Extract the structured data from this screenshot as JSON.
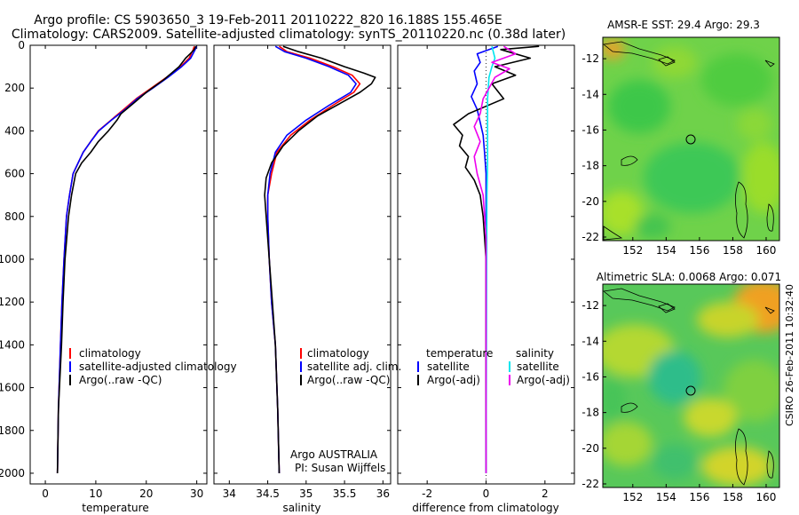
{
  "header": {
    "title_line1": "Argo profile: CS 5903650_3 19-Feb-2011 20110222_820 16.188S 155.465E",
    "title_line2": "Climatology: CARS2009. Satellite-adjusted climatology: synTS_20110220.nc (0.38d later)"
  },
  "side_label": "CSIRO 26-Feb-2011 10:32:40",
  "colors": {
    "clim": "#ff0000",
    "sat": "#0000ff",
    "argo": "#000000",
    "sat_diff": "#00e5ee",
    "argo_adj": "#ee00ee"
  },
  "chart_data": [
    {
      "id": "temperature",
      "type": "line",
      "xlabel": "temperature",
      "xlim": [
        -3,
        32
      ],
      "ylim": [
        2050,
        0
      ],
      "xticks": [
        0,
        10,
        20,
        30
      ],
      "yticks": [
        0,
        200,
        400,
        600,
        800,
        1000,
        1200,
        1400,
        1600,
        1800,
        2000
      ],
      "legend": {
        "placement": "lower-left",
        "items": [
          {
            "label": "climatology",
            "color": "#ff0000"
          },
          {
            "label": "satellite-adjusted climatology",
            "color": "#0000ff"
          },
          {
            "label": "Argo(..raw -QC)",
            "color": "#000000"
          }
        ]
      },
      "series": [
        {
          "name": "climatology",
          "color": "#ff0000",
          "x": [
            29.5,
            29.3,
            28.5,
            26.8,
            24,
            21,
            18,
            15.5,
            13,
            10.5,
            9,
            7.5,
            6.5,
            5.5,
            4.8,
            4.2,
            3.7,
            3.3,
            3.0,
            2.6,
            2.4
          ],
          "y": [
            5,
            20,
            60,
            100,
            150,
            200,
            250,
            300,
            350,
            400,
            450,
            500,
            550,
            600,
            700,
            800,
            1000,
            1200,
            1400,
            1700,
            2000
          ]
        },
        {
          "name": "satellite-adjusted climatology",
          "color": "#0000ff",
          "x": [
            29.9,
            29.7,
            28.8,
            27,
            24.3,
            21.3,
            18.2,
            15.8,
            13.1,
            10.6,
            9,
            7.5,
            6.5,
            5.5,
            4.8,
            4.2,
            3.7,
            3.3,
            3.0,
            2.6,
            2.4
          ],
          "y": [
            5,
            20,
            60,
            100,
            150,
            200,
            250,
            300,
            350,
            400,
            450,
            500,
            550,
            600,
            700,
            800,
            1000,
            1200,
            1400,
            1700,
            2000
          ]
        },
        {
          "name": "Argo(..raw -QC)",
          "color": "#000000",
          "x": [
            29.8,
            29.5,
            28.7,
            27.8,
            26.5,
            23.5,
            20,
            17.5,
            15,
            14.2,
            12.5,
            10.5,
            9,
            7.2,
            6,
            5.2,
            4.6,
            3.9,
            3.5,
            3.2,
            2.6,
            2.4
          ],
          "y": [
            5,
            20,
            40,
            60,
            100,
            160,
            220,
            270,
            320,
            350,
            400,
            450,
            500,
            550,
            600,
            700,
            800,
            1000,
            1200,
            1400,
            1700,
            2000
          ]
        }
      ]
    },
    {
      "id": "salinity",
      "type": "line",
      "xlabel": "salinity",
      "xlim": [
        33.8,
        36.1
      ],
      "ylim": [
        2050,
        0
      ],
      "xticks": [
        34,
        34.5,
        35,
        35.5,
        36
      ],
      "legend": {
        "placement": "lower-right",
        "items": [
          {
            "label": "climatology",
            "color": "#ff0000"
          },
          {
            "label": "satellite adj. clim.",
            "color": "#0000ff"
          },
          {
            "label": "Argo(..raw -QC)",
            "color": "#000000"
          }
        ]
      },
      "annotation": [
        "Argo AUSTRALIA",
        "PI: Susan Wijffels"
      ],
      "series": [
        {
          "name": "climatology",
          "color": "#ff0000",
          "x": [
            34.65,
            34.75,
            35.05,
            35.35,
            35.6,
            35.7,
            35.62,
            35.35,
            35.05,
            34.8,
            34.62,
            34.55,
            34.5,
            34.5,
            34.52,
            34.55,
            34.6,
            34.63,
            34.65
          ],
          "y": [
            5,
            30,
            60,
            100,
            140,
            180,
            220,
            280,
            350,
            420,
            500,
            600,
            700,
            800,
            1000,
            1200,
            1400,
            1700,
            2000
          ]
        },
        {
          "name": "satellite adj. clim.",
          "color": "#0000ff",
          "x": [
            34.6,
            34.72,
            35.0,
            35.3,
            35.55,
            35.65,
            35.58,
            35.3,
            35.0,
            34.75,
            34.6,
            34.53,
            34.5,
            34.5,
            34.52,
            34.55,
            34.6,
            34.63,
            34.65
          ],
          "y": [
            5,
            30,
            60,
            100,
            140,
            180,
            220,
            280,
            350,
            420,
            500,
            600,
            700,
            800,
            1000,
            1200,
            1400,
            1700,
            2000
          ]
        },
        {
          "name": "Argo(..raw -QC)",
          "color": "#000000",
          "x": [
            34.7,
            34.9,
            35.2,
            35.5,
            35.75,
            35.9,
            35.85,
            35.7,
            35.45,
            35.15,
            34.9,
            34.7,
            34.55,
            34.48,
            34.46,
            34.48,
            34.52,
            34.56,
            34.6,
            34.63,
            34.65
          ],
          "y": [
            5,
            30,
            60,
            100,
            130,
            150,
            180,
            220,
            270,
            330,
            400,
            470,
            550,
            620,
            700,
            800,
            1000,
            1200,
            1400,
            1700,
            2000
          ]
        }
      ]
    },
    {
      "id": "difference",
      "type": "line",
      "xlabel": "difference from climatology",
      "xlim": [
        -3,
        3
      ],
      "ylim": [
        2050,
        0
      ],
      "xticks": [
        -2,
        0,
        2
      ],
      "legend": {
        "placement": "lower-center",
        "items": [
          {
            "label": "temperature",
            "color": null
          },
          {
            "label": "satellite",
            "color": "#0000ff"
          },
          {
            "label": "Argo(-adj)",
            "color": "#000000"
          },
          {
            "label": "salinity",
            "color": null
          },
          {
            "label": "satellite",
            "color": "#00e5ee"
          },
          {
            "label": "Argo(-adj)",
            "color": "#ee00ee"
          }
        ]
      },
      "series": [
        {
          "name": "temperature satellite",
          "color": "#0000ff",
          "x": [
            0.4,
            -0.3,
            -0.2,
            -0.4,
            -0.3,
            -0.5,
            -0.3,
            -0.2,
            -0.1,
            -0.05,
            0,
            0,
            0,
            0
          ],
          "y": [
            5,
            40,
            80,
            120,
            180,
            240,
            300,
            360,
            420,
            500,
            600,
            800,
            1200,
            2000
          ]
        },
        {
          "name": "temperature Argo(-adj)",
          "color": "#000000",
          "x": [
            1.8,
            0.5,
            1.5,
            0.3,
            1.0,
            0.2,
            0.6,
            -0.6,
            -1.1,
            -0.8,
            -0.9,
            -0.6,
            -0.7,
            -0.4,
            -0.2,
            -0.1,
            0,
            0
          ],
          "y": [
            5,
            20,
            60,
            100,
            140,
            180,
            250,
            320,
            370,
            420,
            470,
            520,
            570,
            630,
            700,
            800,
            1000,
            2000
          ]
        },
        {
          "name": "salinity satellite",
          "color": "#00e5ee",
          "x": [
            0.2,
            0.3,
            0.2,
            0.1,
            0.05,
            0.05,
            0.05,
            0.03,
            0.02,
            0
          ],
          "y": [
            5,
            60,
            100,
            150,
            250,
            400,
            550,
            700,
            1000,
            2000
          ]
        },
        {
          "name": "salinity Argo(-adj)",
          "color": "#ee00ee",
          "x": [
            0.6,
            1.0,
            0.2,
            0.8,
            0.3,
            -0.1,
            -0.2,
            -0.4,
            -0.2,
            -0.4,
            -0.3,
            -0.1,
            0,
            0
          ],
          "y": [
            5,
            40,
            80,
            110,
            150,
            250,
            320,
            380,
            450,
            520,
            600,
            700,
            900,
            2000
          ]
        }
      ]
    },
    {
      "id": "sst_map",
      "type": "heatmap",
      "title": "AMSR-E SST: 29.4 Argo: 29.3",
      "xticks": [
        152,
        154,
        156,
        158,
        160
      ],
      "yticks": [
        -12,
        -14,
        -16,
        -18,
        -20,
        -22
      ],
      "xlim": [
        150.2,
        160.8
      ],
      "ylim": [
        -22.2,
        -10.8
      ],
      "float_position": [
        155.465,
        -16.188
      ]
    },
    {
      "id": "sla_map",
      "type": "heatmap",
      "title": "Altimetric SLA: 0.0068 Argo: 0.071",
      "xticks": [
        152,
        154,
        156,
        158,
        160
      ],
      "yticks": [
        -12,
        -14,
        -16,
        -18,
        -20,
        -22
      ],
      "xlim": [
        150.2,
        160.8
      ],
      "ylim": [
        -22.2,
        -10.8
      ],
      "float_position": [
        155.465,
        -16.188
      ]
    }
  ]
}
